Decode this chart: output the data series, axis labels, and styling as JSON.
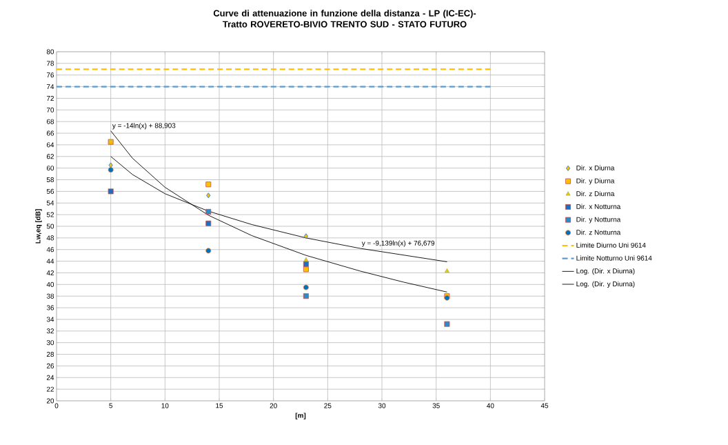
{
  "chart_data": {
    "type": "scatter",
    "title": "Curve di attenuazione in funzione della distanza - LP (IC-EC)-Tratto ROVERETO-BIVIO TRENTO SUD - STATO FUTURO",
    "xlabel": "[m]",
    "ylabel": "Lw,eq [dB]",
    "x": [
      5,
      14,
      23,
      36
    ],
    "series": [
      {
        "name": "Dir. x Diurna",
        "color": "#ffc000",
        "marker": "diamond",
        "values": [
          60.5,
          55.3,
          48.3,
          null
        ]
      },
      {
        "name": "Dir. y Diurna",
        "color": "#ffc000",
        "marker": "square",
        "values": [
          64.5,
          57.2,
          42.6,
          38
        ]
      },
      {
        "name": "Dir. z Diurna",
        "color": "#ffc000",
        "marker": "triangle",
        "values": [
          64.5,
          null,
          44.2,
          42.3
        ]
      },
      {
        "name": "Dir. x Notturna",
        "color": "#1f6fc0",
        "marker": "square",
        "values": [
          56,
          50.5,
          43.5,
          null
        ]
      },
      {
        "name": "Dir. y Notturna",
        "color": "#2e8bc9",
        "marker": "square",
        "values": [
          null,
          52.5,
          38,
          33.2
        ]
      },
      {
        "name": "Dir. z Notturna",
        "color": "#0070c0",
        "marker": "circle",
        "values": [
          59.7,
          45.8,
          39.5,
          37.7
        ]
      },
      {
        "name": "Limite Diurno Uni 9614",
        "type": "line",
        "color": "#ffc000",
        "line_style": "dashed",
        "marker": "none",
        "x": [
          0,
          40
        ],
        "values": [
          77,
          77
        ]
      },
      {
        "name": "Limite Notturno Uni 9614",
        "type": "line",
        "color": "#5b9bd5",
        "line_style": "dashed",
        "marker": "none",
        "x": [
          0,
          40
        ],
        "values": [
          74,
          74
        ]
      },
      {
        "name": "Log. (Dir. x Diurna)",
        "type": "line",
        "color": "#000000",
        "line_style": "solid",
        "marker": "none",
        "x": [
          5,
          7,
          10,
          14,
          18,
          23,
          28,
          36
        ],
        "values": [
          62,
          58.9,
          55.6,
          52.6,
          50.3,
          48,
          46.2,
          43.9
        ]
      },
      {
        "name": "Log. (Dir. y Diurna)",
        "type": "line",
        "color": "#000000",
        "line_style": "solid",
        "marker": "none",
        "x": [
          5,
          7,
          10,
          14,
          18,
          23,
          28,
          32,
          36
        ],
        "values": [
          66.4,
          61.7,
          56.7,
          51.9,
          48.4,
          45,
          42.3,
          40.4,
          38.7
        ]
      }
    ],
    "annotations": [
      {
        "text": "y = -14ln(x) + 88,903",
        "x": 5,
        "y": 66.4
      },
      {
        "text": "y = -9,139ln(x) + 76,679",
        "x": 28,
        "y": 46.2
      }
    ],
    "xlim": [
      0,
      45
    ],
    "xticks": [
      0,
      5,
      10,
      15,
      20,
      25,
      30,
      35,
      40,
      45
    ],
    "ylim": [
      20,
      80
    ],
    "yticks": [
      20,
      22,
      24,
      26,
      28,
      30,
      32,
      34,
      36,
      38,
      40,
      42,
      44,
      46,
      48,
      50,
      52,
      54,
      56,
      58,
      60,
      62,
      64,
      66,
      68,
      70,
      72,
      74,
      76,
      78,
      80
    ],
    "grid": true,
    "legend": "right"
  }
}
